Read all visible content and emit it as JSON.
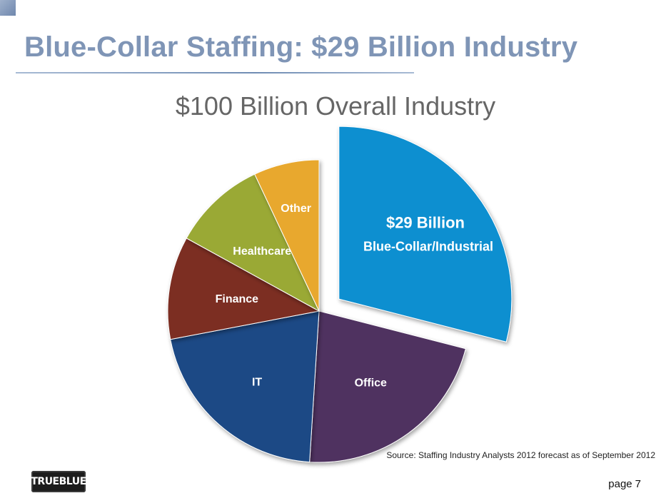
{
  "slide": {
    "title": "Blue-Collar Staffing: $29 Billion Industry",
    "source": "Source: Staffing Industry Analysts 2012 forecast as of September 2012",
    "page_prefix": "page",
    "page_number": "7",
    "logo_text": "TRUEBLUE"
  },
  "chart_data": {
    "type": "pie",
    "title": "$100 Billion Overall Industry",
    "total": 100,
    "unit": "Billion",
    "slices": [
      {
        "label": "$29 Billion",
        "sublabel": "Blue-Collar/Industrial",
        "value": 29,
        "color": "#0e8fd0",
        "exploded": true
      },
      {
        "label": "Office",
        "value": 22,
        "color": "#4f3060",
        "exploded": false
      },
      {
        "label": "IT",
        "value": 21,
        "color": "#1a4a85",
        "exploded": false
      },
      {
        "label": "Finance",
        "value": 11,
        "color": "#7b2d24",
        "exploded": false
      },
      {
        "label": "Healthcare",
        "value": 10,
        "color": "#9aa935",
        "exploded": false
      },
      {
        "label": "Other",
        "value": 7,
        "color": "#e8a82e",
        "exploded": false
      }
    ]
  }
}
